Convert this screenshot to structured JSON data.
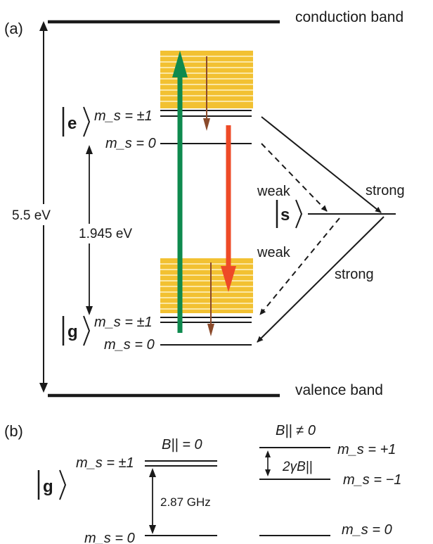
{
  "panel_a": {
    "label": "(a)",
    "conduction_band": "conduction band",
    "valence_band": "valence band",
    "gap_energy": "5.5 eV",
    "zpl_energy": "1.945 eV",
    "excited_state": {
      "letter": "e",
      "ms_pm1": "m_s = ±1",
      "ms_0": "m_s = 0"
    },
    "ground_state": {
      "letter": "g",
      "ms_pm1": "m_s = ±1",
      "ms_0": "m_s = 0"
    },
    "singlet_state": {
      "letter": "s"
    },
    "transition_labels": {
      "weak_upper": "weak",
      "weak_lower": "weak",
      "strong_upper": "strong",
      "strong_lower": "strong"
    },
    "colors": {
      "phonon_band": "#f2c132",
      "phonon_lines": "#fbe7a3",
      "excitation": "#0e8a4e",
      "emission": "#ee4a27",
      "relaxation": "#8b4a2b"
    }
  },
  "panel_b": {
    "label": "(b)",
    "ground_letter": "g",
    "left_field": "B|| = 0",
    "right_field": "B|| ≠ 0",
    "left_ms_pm1": "m_s = ±1",
    "left_ms_0": "m_s = 0",
    "splitting": "2.87 GHz",
    "zeeman_splitting": "2γB||",
    "right_ms_p1": "m_s = +1",
    "right_ms_m1": "m_s = −1",
    "right_ms_0": "m_s = 0"
  }
}
